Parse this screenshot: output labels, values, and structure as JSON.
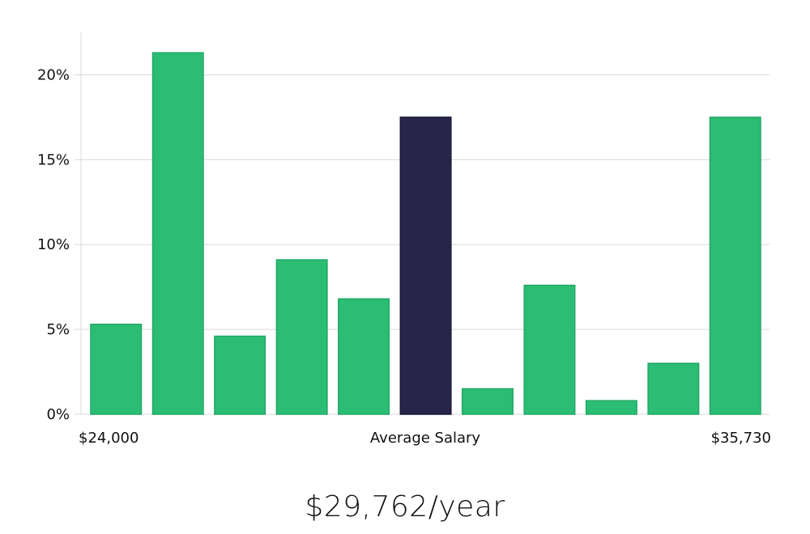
{
  "chart_data": {
    "type": "bar",
    "title": "",
    "ylabel": "",
    "xlabel": "Average Salary",
    "x_start_label": "$24,000",
    "x_end_label": "$35,730",
    "ylim": [
      0,
      22.5
    ],
    "yticks": [
      0,
      5,
      10,
      15,
      20
    ],
    "ytick_labels": [
      "0%",
      "5%",
      "10%",
      "15%",
      "20%"
    ],
    "grid": true,
    "values": [
      5.3,
      21.3,
      4.6,
      9.1,
      6.8,
      17.5,
      1.5,
      7.6,
      0.8,
      3.0,
      17.5
    ],
    "highlight_index": 5,
    "colors": {
      "bar": "#2bbd74",
      "bar_stroke": "#22a865",
      "highlight": "#28254a",
      "highlight_stroke": "#1a1838"
    }
  },
  "average": {
    "text": "$29,762/year"
  }
}
